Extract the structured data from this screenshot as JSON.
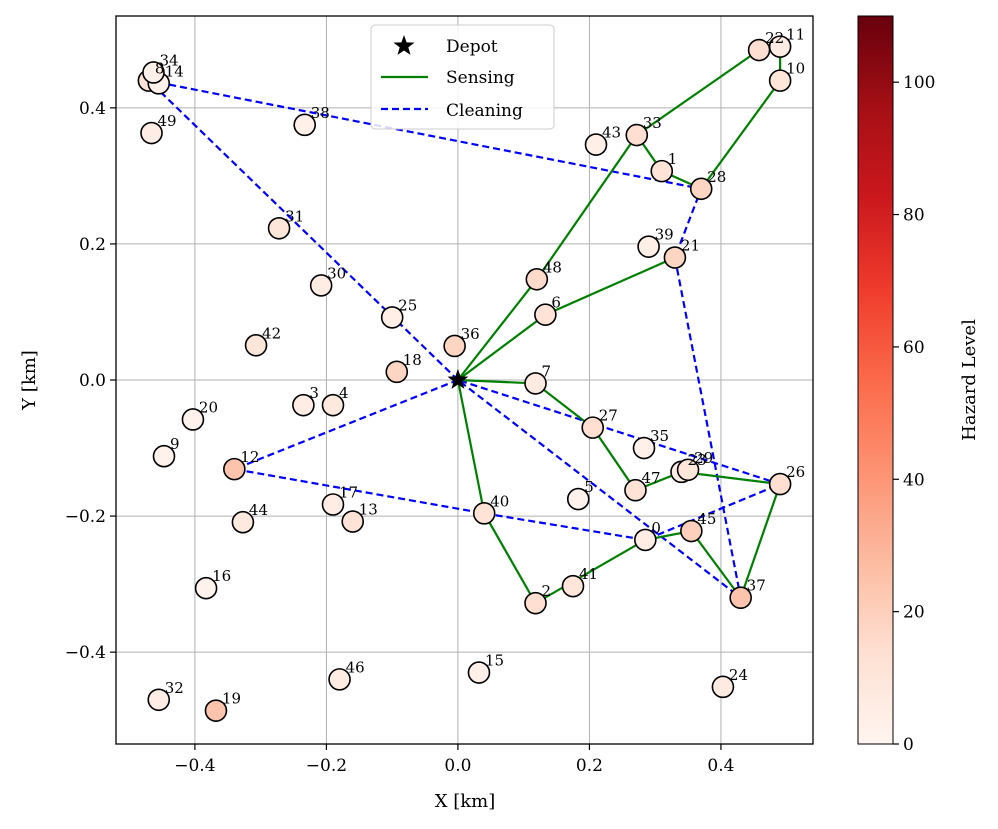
{
  "chart_data": {
    "type": "scatter",
    "xlabel": "X [km]",
    "ylabel": "Y [km]",
    "xlim": [
      -0.52,
      0.54
    ],
    "ylim": [
      -0.535,
      0.535
    ],
    "xticks": [
      -0.4,
      -0.2,
      0.0,
      0.2,
      0.4
    ],
    "yticks": [
      -0.4,
      -0.2,
      0.0,
      0.2,
      0.4
    ],
    "xtick_labels": [
      "−0.4",
      "−0.2",
      "0.0",
      "0.2",
      "0.4"
    ],
    "ytick_labels": [
      "−0.4",
      "−0.2",
      "0.0",
      "0.2",
      "0.4"
    ],
    "grid": true,
    "legend_position": "top-center",
    "legend": [
      {
        "label": "Depot",
        "marker": "star",
        "color": "#000000"
      },
      {
        "label": "Sensing",
        "style": "solid",
        "color": "#008000"
      },
      {
        "label": "Cleaning",
        "style": "dashed",
        "color": "#0000ff"
      }
    ],
    "colorbar": {
      "label": "Hazard Level",
      "min": 0,
      "max": 110,
      "ticks": [
        0,
        20,
        40,
        60,
        80,
        100
      ],
      "colormap": "Reds"
    },
    "depot": {
      "x": 0.0,
      "y": 0.0
    },
    "nodes": [
      {
        "id": "0",
        "x": 0.285,
        "y": -0.235,
        "hazard": 6
      },
      {
        "id": "1",
        "x": 0.31,
        "y": 0.307,
        "hazard": 12
      },
      {
        "id": "2",
        "x": 0.118,
        "y": -0.328,
        "hazard": 14
      },
      {
        "id": "3",
        "x": -0.235,
        "y": -0.037,
        "hazard": 5
      },
      {
        "id": "4",
        "x": -0.19,
        "y": -0.037,
        "hazard": 8
      },
      {
        "id": "5",
        "x": 0.183,
        "y": -0.175,
        "hazard": 2
      },
      {
        "id": "6",
        "x": 0.133,
        "y": 0.096,
        "hazard": 12
      },
      {
        "id": "7",
        "x": 0.118,
        "y": -0.005,
        "hazard": 7
      },
      {
        "id": "8",
        "x": -0.47,
        "y": 0.44,
        "hazard": 12
      },
      {
        "id": "9",
        "x": -0.447,
        "y": -0.112,
        "hazard": 2
      },
      {
        "id": "10",
        "x": 0.49,
        "y": 0.44,
        "hazard": 10
      },
      {
        "id": "11",
        "x": 0.49,
        "y": 0.49,
        "hazard": 5
      },
      {
        "id": "12",
        "x": -0.34,
        "y": -0.131,
        "hazard": 24
      },
      {
        "id": "13",
        "x": -0.16,
        "y": -0.208,
        "hazard": 12
      },
      {
        "id": "14",
        "x": -0.455,
        "y": 0.436,
        "hazard": 3
      },
      {
        "id": "15",
        "x": 0.032,
        "y": -0.43,
        "hazard": 3
      },
      {
        "id": "16",
        "x": -0.383,
        "y": -0.306,
        "hazard": 2
      },
      {
        "id": "17",
        "x": -0.19,
        "y": -0.183,
        "hazard": 5
      },
      {
        "id": "18",
        "x": -0.093,
        "y": 0.012,
        "hazard": 18
      },
      {
        "id": "19",
        "x": -0.368,
        "y": -0.486,
        "hazard": 24
      },
      {
        "id": "20",
        "x": -0.403,
        "y": -0.058,
        "hazard": 2
      },
      {
        "id": "21",
        "x": 0.33,
        "y": 0.18,
        "hazard": 18
      },
      {
        "id": "22",
        "x": 0.458,
        "y": 0.485,
        "hazard": 14
      },
      {
        "id": "23",
        "x": 0.34,
        "y": -0.135,
        "hazard": 5
      },
      {
        "id": "24",
        "x": 0.403,
        "y": -0.451,
        "hazard": 7
      },
      {
        "id": "25",
        "x": -0.1,
        "y": 0.092,
        "hazard": 4
      },
      {
        "id": "26",
        "x": 0.49,
        "y": -0.153,
        "hazard": 14
      },
      {
        "id": "27",
        "x": 0.205,
        "y": -0.07,
        "hazard": 14
      },
      {
        "id": "28",
        "x": 0.37,
        "y": 0.281,
        "hazard": 18
      },
      {
        "id": "29",
        "x": 0.35,
        "y": -0.132,
        "hazard": 10
      },
      {
        "id": "30",
        "x": -0.208,
        "y": 0.139,
        "hazard": 6
      },
      {
        "id": "31",
        "x": -0.272,
        "y": 0.223,
        "hazard": 10
      },
      {
        "id": "32",
        "x": -0.455,
        "y": -0.47,
        "hazard": 5
      },
      {
        "id": "33",
        "x": 0.272,
        "y": 0.36,
        "hazard": 14
      },
      {
        "id": "34",
        "x": -0.463,
        "y": 0.452,
        "hazard": 3
      },
      {
        "id": "35",
        "x": 0.283,
        "y": -0.1,
        "hazard": 3
      },
      {
        "id": "36",
        "x": -0.005,
        "y": 0.05,
        "hazard": 18
      },
      {
        "id": "37",
        "x": 0.43,
        "y": -0.32,
        "hazard": 24
      },
      {
        "id": "38",
        "x": -0.233,
        "y": 0.375,
        "hazard": 3
      },
      {
        "id": "39",
        "x": 0.29,
        "y": 0.196,
        "hazard": 4
      },
      {
        "id": "40",
        "x": 0.04,
        "y": -0.196,
        "hazard": 12
      },
      {
        "id": "41",
        "x": 0.175,
        "y": -0.303,
        "hazard": 10
      },
      {
        "id": "42",
        "x": -0.307,
        "y": 0.051,
        "hazard": 10
      },
      {
        "id": "43",
        "x": 0.21,
        "y": 0.346,
        "hazard": 4
      },
      {
        "id": "44",
        "x": -0.327,
        "y": -0.209,
        "hazard": 8
      },
      {
        "id": "45",
        "x": 0.355,
        "y": -0.222,
        "hazard": 20
      },
      {
        "id": "46",
        "x": -0.18,
        "y": -0.44,
        "hazard": 6
      },
      {
        "id": "47",
        "x": 0.27,
        "y": -0.162,
        "hazard": 12
      },
      {
        "id": "48",
        "x": 0.12,
        "y": 0.148,
        "hazard": 16
      },
      {
        "id": "49",
        "x": -0.466,
        "y": 0.363,
        "hazard": 5
      }
    ],
    "sensing_routes": [
      [
        "depot",
        "48",
        "33",
        "1",
        "28",
        "10",
        "11",
        "22",
        "33"
      ],
      [
        "depot",
        "6",
        "21"
      ],
      [
        "depot",
        "7",
        "27",
        "47",
        "23",
        "26",
        "37",
        "45",
        "0",
        "2",
        "40",
        "depot"
      ]
    ],
    "cleaning_routes": [
      [
        "depot",
        "8",
        "28",
        "21",
        "37",
        "depot"
      ],
      [
        "depot",
        "12",
        "40",
        "0",
        "26",
        "depot"
      ]
    ]
  }
}
